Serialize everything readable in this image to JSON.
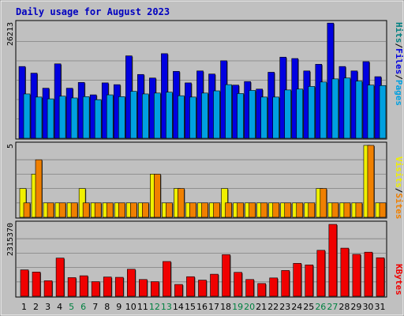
{
  "page": {
    "title": "Daily usage for August 2023"
  },
  "colors": {
    "background": "#C0C0C0",
    "title": "#0000C0",
    "hits": "#0000E0",
    "files": "#00A0E0",
    "pages": "#00D0F0",
    "visits": "#F08000",
    "sites": "#F0F000",
    "kbytes": "#F00000",
    "weekend": "#008040",
    "weekday": "#000000"
  },
  "chart_data": [
    {
      "type": "bar",
      "name": "hits-files-pages",
      "ylabel_top_value": "26213",
      "ylim": [
        0,
        26213
      ],
      "legend_labels": {
        "pages": "Pages",
        "files": "Files",
        "hits": "Hits",
        "sep1": "/",
        "sep2": "/"
      },
      "categories": [
        "1",
        "2",
        "3",
        "4",
        "5",
        "6",
        "7",
        "8",
        "9",
        "10",
        "11",
        "12",
        "13",
        "14",
        "15",
        "16",
        "17",
        "18",
        "19",
        "20",
        "21",
        "22",
        "23",
        "24",
        "25",
        "26",
        "27",
        "28",
        "29",
        "30",
        "31"
      ],
      "series": [
        {
          "name": "Hits",
          "values": [
            16200,
            14700,
            11300,
            16800,
            11300,
            12600,
            9800,
            12500,
            12100,
            18600,
            14400,
            13600,
            19100,
            15100,
            12500,
            15200,
            14500,
            17500,
            12000,
            12800,
            11100,
            14900,
            18300,
            18000,
            15200,
            16700,
            26000,
            16200,
            15200,
            17300,
            13900
          ]
        },
        {
          "name": "Files",
          "values": [
            10000,
            9300,
            8900,
            9500,
            9100,
            9400,
            8700,
            9800,
            9400,
            10600,
            10000,
            10200,
            10400,
            9600,
            9300,
            10200,
            10700,
            12100,
            10100,
            10800,
            9300,
            9300,
            10900,
            11100,
            11700,
            12700,
            13400,
            13600,
            12900,
            12000,
            11900
          ]
        },
        {
          "name": "Pages",
          "values": [
            0,
            0,
            0,
            0,
            0,
            0,
            0,
            0,
            0,
            0,
            0,
            0,
            0,
            0,
            0,
            0,
            0,
            0,
            0,
            0,
            0,
            0,
            0,
            0,
            0,
            0,
            0,
            0,
            0,
            0,
            0
          ]
        }
      ]
    },
    {
      "type": "bar",
      "name": "visits-sites",
      "ylabel_top_value": "5",
      "ylim": [
        0,
        5
      ],
      "legend_labels": {
        "sites": "Sites",
        "visits": "Visits",
        "sep": "/"
      },
      "categories": [
        "1",
        "2",
        "3",
        "4",
        "5",
        "6",
        "7",
        "8",
        "9",
        "10",
        "11",
        "12",
        "13",
        "14",
        "15",
        "16",
        "17",
        "18",
        "19",
        "20",
        "21",
        "22",
        "23",
        "24",
        "25",
        "26",
        "27",
        "28",
        "29",
        "30",
        "31"
      ],
      "series": [
        {
          "name": "Sites",
          "values": [
            2,
            3,
            1,
            1,
            1,
            2,
            1,
            1,
            1,
            1,
            1,
            3,
            1,
            2,
            1,
            1,
            1,
            2,
            1,
            1,
            1,
            1,
            1,
            1,
            1,
            2,
            1,
            1,
            1,
            5,
            1
          ]
        },
        {
          "name": "Visits",
          "values": [
            1,
            4,
            1,
            1,
            1,
            1,
            1,
            1,
            1,
            1,
            1,
            3,
            1,
            2,
            1,
            1,
            1,
            1,
            1,
            1,
            1,
            1,
            1,
            1,
            1,
            2,
            1,
            1,
            1,
            5,
            1
          ]
        }
      ]
    },
    {
      "type": "bar",
      "name": "kbytes",
      "ylabel_top_value": "2315370",
      "ylim": [
        0,
        2315370
      ],
      "legend_labels": {
        "kbytes": "KBytes"
      },
      "categories": [
        "1",
        "2",
        "3",
        "4",
        "5",
        "6",
        "7",
        "8",
        "9",
        "10",
        "11",
        "12",
        "13",
        "14",
        "15",
        "16",
        "17",
        "18",
        "19",
        "20",
        "21",
        "22",
        "23",
        "24",
        "25",
        "26",
        "27",
        "28",
        "29",
        "30",
        "31"
      ],
      "weekend_days": [
        "5",
        "6",
        "12",
        "13",
        "19",
        "20",
        "26",
        "27"
      ],
      "series": [
        {
          "name": "KBytes",
          "values": [
            850000,
            780000,
            500000,
            1230000,
            600000,
            660000,
            470000,
            620000,
            610000,
            870000,
            540000,
            470000,
            1120000,
            380000,
            630000,
            520000,
            710000,
            1340000,
            770000,
            540000,
            410000,
            590000,
            830000,
            1060000,
            1010000,
            1480000,
            2315370,
            1550000,
            1350000,
            1420000,
            1240000
          ]
        }
      ]
    }
  ]
}
